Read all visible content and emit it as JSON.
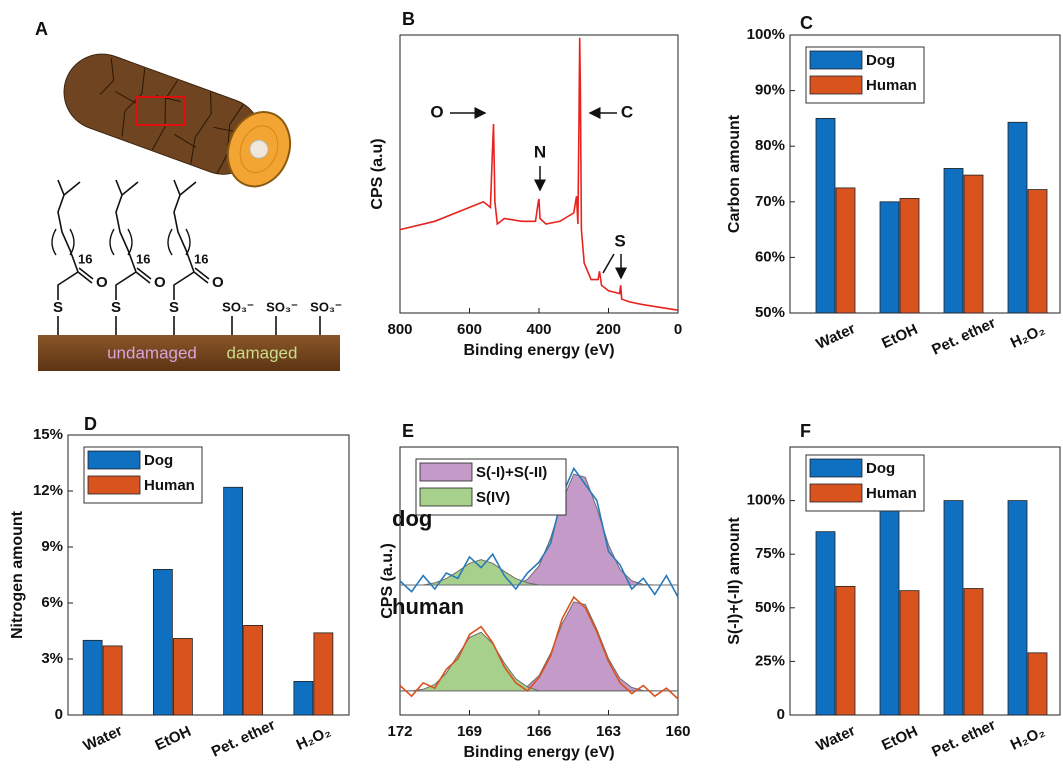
{
  "panel_a": {
    "label": "A",
    "chain_length": [
      "16",
      "16",
      "16"
    ],
    "carbonyl_oxygen": [
      "O",
      "O",
      "O"
    ],
    "thioester_sulfur": [
      "S",
      "S",
      "S"
    ],
    "sulfonate": [
      "SO₃⁻",
      "SO₃⁻",
      "SO₃⁻"
    ],
    "undamaged": "undamaged",
    "damaged": "damaged"
  },
  "chart_data": [
    {
      "type": "line",
      "panel_label": "B",
      "xlabel": "Binding energy (eV)",
      "ylabel": "CPS (a.u)",
      "x": [
        800,
        700,
        600,
        560,
        540,
        535,
        531,
        527,
        520,
        500,
        450,
        410,
        402,
        400,
        397,
        380,
        340,
        300,
        292,
        288,
        285,
        283,
        281,
        278,
        270,
        250,
        230,
        226,
        220,
        200,
        168,
        165,
        162,
        140,
        100,
        50,
        0
      ],
      "series": [
        {
          "color": "#e8231f",
          "values": [
            30,
            33,
            38,
            40,
            38,
            55,
            68,
            40,
            32,
            34,
            33,
            33,
            40,
            41,
            34,
            32,
            33,
            36,
            42,
            32,
            70,
            99,
            80,
            30,
            18,
            12,
            12,
            15,
            10,
            8,
            7,
            10,
            5,
            4,
            3,
            2,
            1
          ]
        }
      ],
      "xlim": [
        800,
        0
      ],
      "xticks": [
        800,
        600,
        400,
        200,
        0
      ],
      "ylim": [
        0,
        100
      ],
      "annotations": [
        "O",
        "N",
        "C",
        "S"
      ]
    },
    {
      "type": "bar",
      "panel_label": "C",
      "ylabel": "Carbon amount",
      "categories": [
        "Water",
        "EtOH",
        "Pet. ether",
        "H₂O₂"
      ],
      "series": [
        {
          "name": "Dog",
          "color": "#0f6fc0",
          "values": [
            85,
            70,
            76,
            84.3
          ]
        },
        {
          "name": "Human",
          "color": "#d9531e",
          "values": [
            72.5,
            70.6,
            74.8,
            72.2
          ]
        }
      ],
      "ylim": [
        50,
        100
      ],
      "yticks": [
        {
          "value": 50,
          "label": "50%"
        },
        {
          "value": 60,
          "label": "60%"
        },
        {
          "value": 70,
          "label": "70%"
        },
        {
          "value": 80,
          "label": "80%"
        },
        {
          "value": 90,
          "label": "90%"
        },
        {
          "value": 100,
          "label": "100%"
        }
      ],
      "legend": "upper left"
    },
    {
      "type": "bar",
      "panel_label": "D",
      "ylabel": "Nitrogen amount",
      "categories": [
        "Water",
        "EtOH",
        "Pet. ether",
        "H₂O₂"
      ],
      "series": [
        {
          "name": "Dog",
          "color": "#0f6fc0",
          "values": [
            4.0,
            7.8,
            12.2,
            1.8
          ]
        },
        {
          "name": "Human",
          "color": "#d9531e",
          "values": [
            3.7,
            4.1,
            4.8,
            4.4
          ]
        }
      ],
      "ylim": [
        0,
        15
      ],
      "yticks": [
        0,
        {
          "value": 3,
          "label": "3%"
        },
        {
          "value": 6,
          "label": "6%"
        },
        {
          "value": 9,
          "label": "9%"
        },
        {
          "value": 12,
          "label": "12%"
        },
        {
          "value": 15,
          "label": "15%"
        }
      ],
      "legend": "upper left"
    },
    {
      "type": "area",
      "panel_label": "E",
      "xlabel": "Binding energy (eV)",
      "ylabel": "CPS (a.u.)",
      "x": [
        172,
        171.5,
        171,
        170.5,
        170,
        169.5,
        169,
        168.5,
        168,
        167.5,
        167,
        166.5,
        166,
        165.5,
        165,
        164.5,
        164,
        163.5,
        163,
        162.5,
        162,
        161.5,
        161,
        160.5,
        160
      ],
      "series": [
        {
          "name": "S(-I)+S(-II)",
          "style": "area",
          "color": "#c49ac9",
          "values": [
            48.5,
            48.5,
            48.5,
            48.5,
            48.5,
            48.5,
            48.5,
            48.5,
            48.5,
            48.5,
            48.5,
            50.6,
            55.6,
            66,
            79.9,
            89.9,
            88.7,
            77.1,
            63.5,
            54.2,
            50.1,
            48.7,
            48.5,
            48.5,
            48.5
          ]
        },
        {
          "name": "S(IV)",
          "style": "area",
          "color": "#a8d08d",
          "values": [
            48.5,
            48.5,
            48.5,
            49.3,
            50.9,
            53.6,
            56.6,
            58,
            56.6,
            53.6,
            50.9,
            49.3,
            48.5,
            48.5,
            48.5,
            48.5,
            48.5,
            48.5,
            48.5,
            48.5,
            48.5,
            48.5,
            48.5,
            48.5,
            48.5
          ]
        },
        {
          "style": "line",
          "color": "#2a7ab9",
          "values": [
            50,
            46,
            52,
            47,
            53,
            51,
            59,
            55,
            60,
            52,
            47,
            53,
            57,
            64,
            82,
            92,
            86,
            80,
            61,
            56,
            47,
            51,
            45,
            52,
            44
          ]
        },
        {
          "style": "area",
          "color": "#c49ac9",
          "values": [
            9,
            9,
            9,
            9,
            9,
            9,
            9,
            9,
            9,
            9,
            9,
            10.7,
            14.7,
            23,
            34.1,
            42.2,
            41.2,
            31.9,
            21,
            13.6,
            10.3,
            9.1,
            9,
            9,
            9
          ]
        },
        {
          "style": "area",
          "color": "#a8d08d",
          "values": [
            9,
            9,
            9.6,
            11.4,
            15.6,
            22.4,
            28.9,
            30.9,
            26.6,
            19.4,
            13.5,
            10.5,
            9,
            9,
            9,
            9,
            9,
            9,
            9,
            9,
            9,
            9,
            9,
            9,
            9
          ]
        },
        {
          "style": "line",
          "color": "#d9531e",
          "values": [
            11,
            7,
            12,
            10,
            17,
            21,
            30,
            33,
            27,
            18,
            12,
            9,
            14,
            22,
            36,
            44,
            40,
            31,
            20,
            12,
            8,
            11,
            7,
            10,
            6
          ]
        }
      ],
      "xlim": [
        172,
        160
      ],
      "xticks": [
        172,
        169,
        166,
        163,
        160
      ],
      "ylim": [
        0,
        100
      ],
      "annotations": [
        "dog",
        "human"
      ],
      "legend": "upper left"
    },
    {
      "type": "bar",
      "panel_label": "F",
      "ylabel": "S(-I)+(-II) amount",
      "categories": [
        "Water",
        "EtOH",
        "Pet. ether",
        "H₂O₂"
      ],
      "series": [
        {
          "name": "Dog",
          "color": "#0f6fc0",
          "values": [
            85.5,
            100,
            100,
            100
          ]
        },
        {
          "name": "Human",
          "color": "#d9531e",
          "values": [
            60,
            58,
            59,
            29
          ]
        }
      ],
      "ylim": [
        0,
        125
      ],
      "yticks": [
        0,
        {
          "value": 25,
          "label": "25%"
        },
        {
          "value": 50,
          "label": "50%"
        },
        {
          "value": 75,
          "label": "75%"
        },
        {
          "value": 100,
          "label": "100%"
        }
      ],
      "legend": "upper left"
    }
  ]
}
